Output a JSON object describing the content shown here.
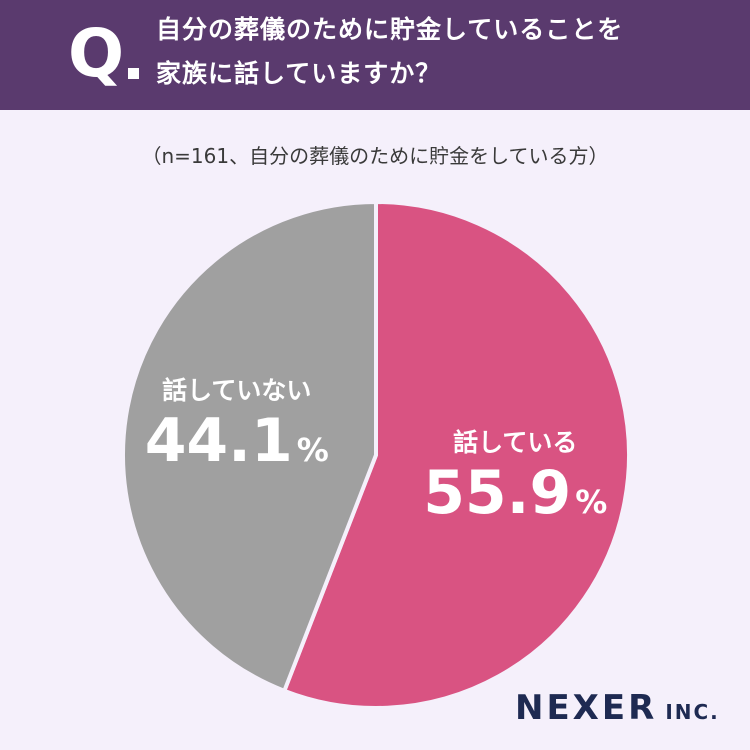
{
  "header": {
    "q_mark": "Q",
    "question_line1": "自分の葬儀のために貯金していることを",
    "question_line2": "家族に話していますか？"
  },
  "chart_data": {
    "type": "pie",
    "subtitle": "（n=161、自分の葬儀のために貯金をしている方）",
    "slices": [
      {
        "label": "話している",
        "value": 55.9,
        "display": "55.9",
        "unit": "%",
        "color": "#d95382"
      },
      {
        "label": "話していない",
        "value": 44.1,
        "display": "44.1",
        "unit": "%",
        "color": "#a0a0a0"
      }
    ],
    "start": "12 o'clock",
    "direction": "clockwise"
  },
  "brand": {
    "main": "NEXER",
    "sub": "INC."
  }
}
